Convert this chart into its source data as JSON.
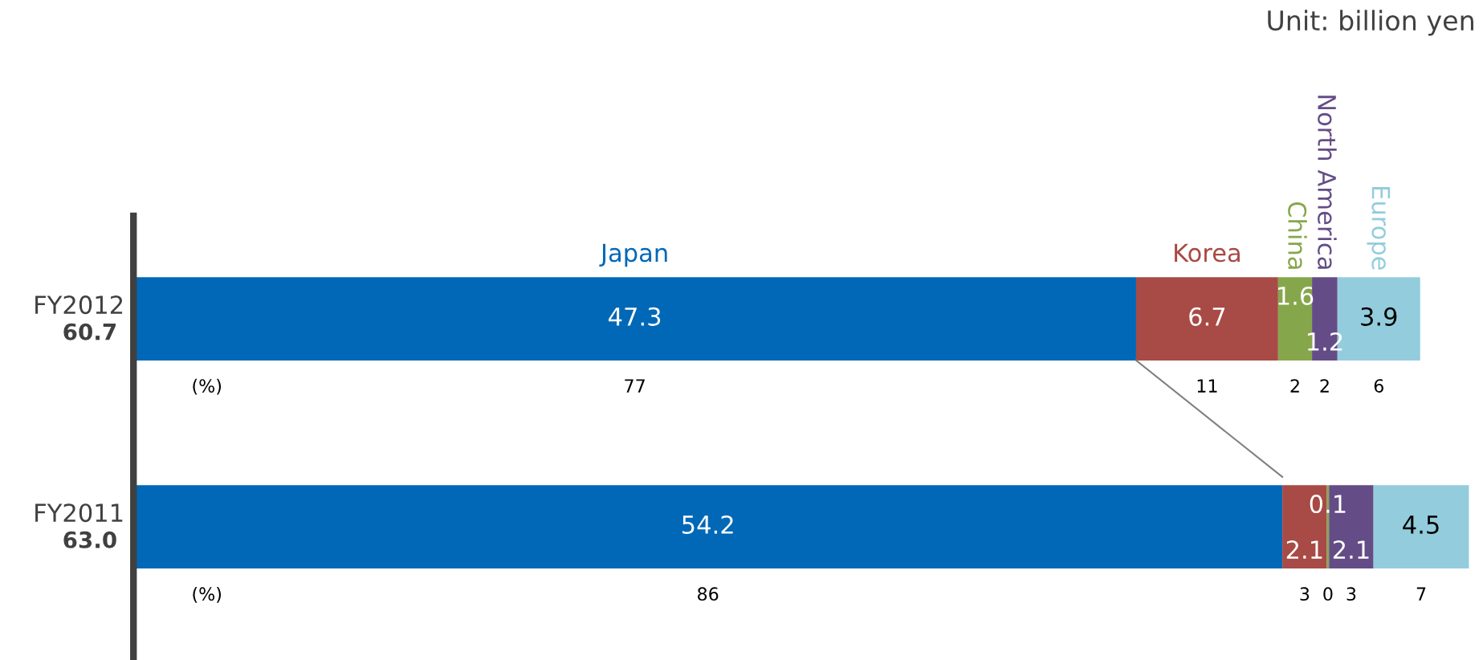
{
  "chart_data": {
    "type": "bar",
    "orientation": "horizontal",
    "stacked": true,
    "data_labels": true,
    "grid": false,
    "legend": false,
    "tick_labels": "y",
    "categories": [
      "FY2012",
      "FY2011"
    ],
    "totals": [
      "60.7",
      "63.0"
    ],
    "series": [
      {
        "name": "Japan",
        "color": "#0068b7",
        "values": [
          47.3,
          54.2
        ]
      },
      {
        "name": "Korea",
        "color": "#a84a45",
        "values": [
          6.7,
          2.1
        ]
      },
      {
        "name": "China",
        "color": "#86a64c",
        "values": [
          1.6,
          0.1
        ]
      },
      {
        "name": "North America",
        "color": "#644d86",
        "values": [
          1.2,
          2.1
        ]
      },
      {
        "name": "Europe",
        "color": "#93cddd",
        "values": [
          3.9,
          4.5
        ]
      }
    ],
    "annotations": [
      "Unit: billion yen",
      "(%)",
      "77",
      "11",
      "2",
      "2",
      "6",
      "(%)",
      "86",
      "3",
      "0",
      "3",
      "7"
    ]
  }
}
